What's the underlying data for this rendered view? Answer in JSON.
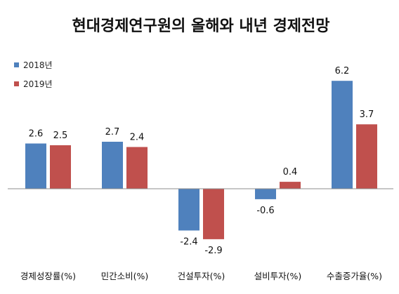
{
  "chart_data": {
    "type": "bar",
    "title": "현대경제연구원의 올해와 내년 경제전망",
    "categories": [
      "경제성장률(%)",
      "민간소비(%)",
      "건설투자(%)",
      "설비투자(%)",
      "수출증가율(%)"
    ],
    "series": [
      {
        "name": "2018년",
        "color": "#4f81bd",
        "values": [
          2.6,
          2.7,
          -2.4,
          -0.6,
          6.2
        ]
      },
      {
        "name": "2019년",
        "color": "#c0504d",
        "values": [
          2.5,
          2.4,
          -2.9,
          0.4,
          3.7
        ]
      }
    ],
    "ylim": [
      -3.3,
      6.5
    ],
    "grid": false,
    "legend_position": "top-left"
  }
}
